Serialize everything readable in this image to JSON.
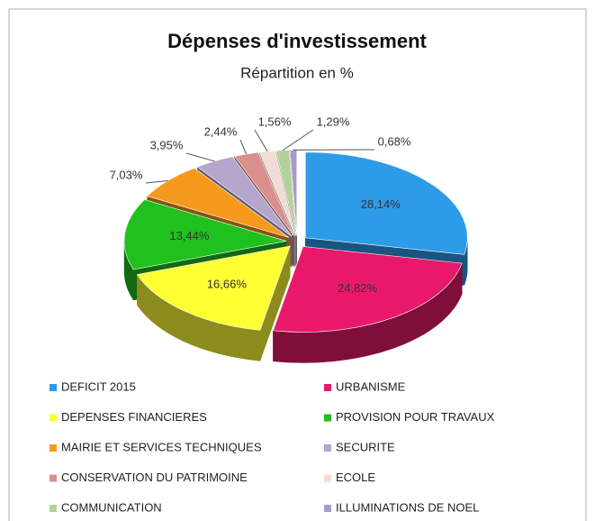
{
  "chart_data": {
    "type": "pie",
    "title": "Dépenses d'investissement",
    "subtitle": "Répartition en %",
    "categories": [
      "DEFICIT 2015",
      "URBANISME",
      "DEPENSES FINANCIERES",
      "PROVISION POUR TRAVAUX",
      "MAIRIE ET SERVICES TECHNIQUES",
      "SECURITE",
      "CONSERVATION DU PATRIMOINE",
      "ECOLE",
      "COMMUNICATION",
      "ILLUMINATIONS DE NOEL"
    ],
    "values": [
      28.14,
      24.82,
      16.66,
      13.44,
      7.03,
      3.95,
      2.44,
      1.56,
      1.29,
      0.68
    ],
    "value_labels": [
      "28,14%",
      "24,82%",
      "16,66%",
      "13,44%",
      "7,03%",
      "3,95%",
      "2,44%",
      "1,56%",
      "1,29%",
      "0,68%"
    ],
    "colors": [
      "#2e9be8",
      "#e8196b",
      "#ffff33",
      "#1fc11f",
      "#f59a1c",
      "#b4a6cc",
      "#d9908c",
      "#f2ddd6",
      "#b3d19b",
      "#a89ac9"
    ],
    "legend": "bottom"
  }
}
